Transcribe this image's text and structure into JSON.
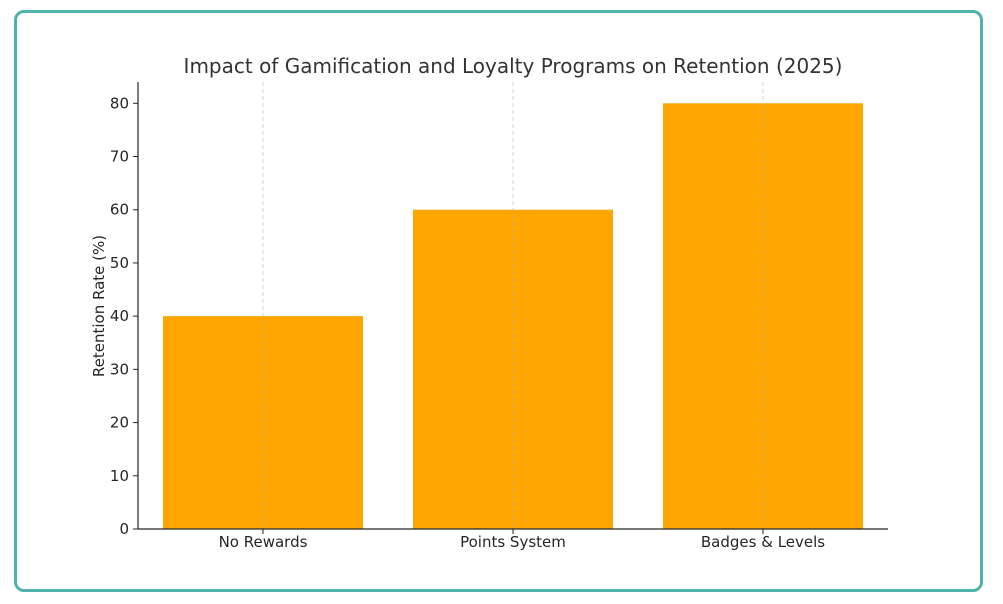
{
  "chart_data": {
    "type": "bar",
    "title": "Impact of Gamification and Loyalty Programs on Retention (2025)",
    "xlabel": "",
    "ylabel": "Retention Rate (%)",
    "categories": [
      "No Rewards",
      "Points System",
      "Badges & Levels"
    ],
    "values": [
      40,
      60,
      80
    ],
    "ylim": [
      0,
      84
    ],
    "yticks": [
      0,
      10,
      20,
      30,
      40,
      50,
      60,
      70,
      80
    ],
    "grid": "vertical-dashed",
    "bar_color": "#ffa500",
    "legend": "none"
  }
}
